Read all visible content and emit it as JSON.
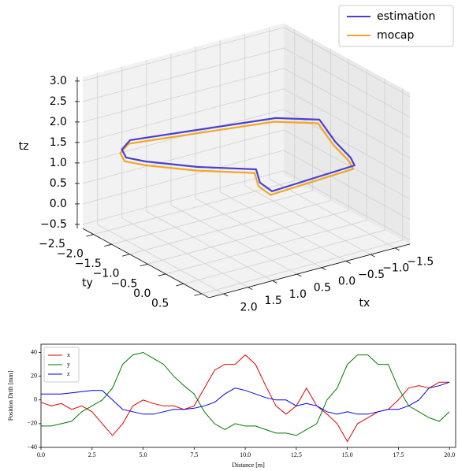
{
  "chart_data": [
    {
      "type": "line3d",
      "xlabel": "tx",
      "ylabel": "ty",
      "zlabel": "tz",
      "xlim": [
        -1.8,
        2.3
      ],
      "ylim": [
        -2.8,
        0.7
      ],
      "zlim": [
        -0.6,
        3.1
      ],
      "xticks": [
        {
          "value": -1.5,
          "label": "−1.5"
        },
        {
          "value": -1,
          "label": "−1.0"
        },
        {
          "value": -0.5,
          "label": "−0.5"
        },
        {
          "value": 0,
          "label": "0.0"
        },
        0.5,
        {
          "value": 1,
          "label": "1.0"
        },
        1.5,
        {
          "value": 2,
          "label": "2.0"
        }
      ],
      "yticks": [
        {
          "value": -2.5,
          "label": "−2.5"
        },
        {
          "value": -2,
          "label": "−2.0"
        },
        {
          "value": -1.5,
          "label": "−1.5"
        },
        {
          "value": -1,
          "label": "−1.0"
        },
        {
          "value": -0.5,
          "label": "−0.5"
        },
        {
          "value": 0,
          "label": "0.0"
        },
        0.5
      ],
      "zticks": [
        {
          "value": -0.5,
          "label": "−0.5"
        },
        {
          "value": 0,
          "label": "0.0"
        },
        0.5,
        {
          "value": 1,
          "label": "1.0"
        },
        1.5,
        {
          "value": 2,
          "label": "2.0"
        },
        2.5,
        {
          "value": 3,
          "label": "3.0"
        }
      ],
      "grid": true,
      "legend": "upper right",
      "series": [
        {
          "name": "estimation",
          "color": "#4a3fd0",
          "tx": [
            0.41,
            0.36,
            0.08,
            0.83,
            1.4,
            1.57,
            1.43,
            1.59,
            0.42,
            -0.96,
            -1.52,
            -1.49,
            -1.51,
            -1.37
          ],
          "ty": [
            -0.12,
            -0.52,
            -1.01,
            -1.63,
            -2.28,
            -2.59,
            -2.9,
            -2.45,
            -2.19,
            -1.88,
            -1.43,
            -0.95,
            -0.55,
            -0.25
          ],
          "tz": [
            1,
            1,
            1,
            1,
            1,
            1,
            1,
            1.5,
            1.5,
            1.5,
            1.5,
            1.2,
            1,
            1
          ]
        },
        {
          "name": "mocap",
          "color": "#f5a623",
          "tx": [
            0.47,
            0.42,
            0.14,
            0.89,
            1.46,
            1.63,
            1.49,
            1.65,
            0.48,
            -0.9,
            -1.46,
            -1.43,
            -1.45,
            -1.31
          ],
          "ty": [
            -0.08,
            -0.48,
            -0.97,
            -1.59,
            -2.24,
            -2.55,
            -2.86,
            -2.41,
            -2.15,
            -1.84,
            -1.39,
            -0.91,
            -0.51,
            -0.21
          ],
          "tz": [
            0.95,
            0.95,
            0.95,
            0.95,
            0.95,
            0.95,
            0.95,
            1.45,
            1.45,
            1.45,
            1.45,
            1.15,
            0.95,
            0.95
          ]
        }
      ]
    },
    {
      "type": "line",
      "xlabel": "Distance [m]",
      "ylabel": "Position Drift [mm]",
      "xlim": [
        0,
        20.3
      ],
      "ylim": [
        -40,
        47
      ],
      "xticks": [
        {
          "value": 0,
          "label": "0.0"
        },
        2.5,
        {
          "value": 5,
          "label": "5.0"
        },
        7.5,
        {
          "value": 10,
          "label": "10.0"
        },
        12.5,
        {
          "value": 15,
          "label": "15.0"
        },
        17.5,
        {
          "value": 20,
          "label": "20.0"
        }
      ],
      "yticks": [
        {
          "value": -40,
          "label": "−40"
        },
        {
          "value": -20,
          "label": "−20"
        },
        0,
        20,
        40
      ],
      "legend": "upper left",
      "x": [
        0,
        0.5,
        1,
        1.5,
        2,
        2.5,
        3,
        3.5,
        4,
        4.5,
        5,
        5.5,
        6,
        6.5,
        7,
        7.5,
        8,
        8.5,
        9,
        9.5,
        10,
        10.5,
        11,
        11.5,
        12,
        12.5,
        13,
        13.5,
        14,
        14.5,
        15,
        15.5,
        16,
        16.5,
        17,
        17.5,
        18,
        18.5,
        19,
        19.5,
        20
      ],
      "series": [
        {
          "name": "x",
          "color": "#e00000",
          "values": [
            -2,
            -5,
            -3,
            -8,
            -5,
            -10,
            -20,
            -30,
            -20,
            -5,
            0,
            -3,
            -5,
            -5,
            -8,
            -5,
            10,
            25,
            30,
            30,
            38,
            30,
            12,
            -5,
            -12,
            -5,
            10,
            -5,
            -12,
            -20,
            -35,
            -20,
            -15,
            -10,
            -8,
            0,
            10,
            12,
            10,
            15,
            15
          ]
        },
        {
          "name": "y",
          "color": "#007a00",
          "values": [
            -22,
            -22,
            -20,
            -18,
            -10,
            -5,
            0,
            10,
            30,
            38,
            40,
            35,
            30,
            20,
            12,
            5,
            -10,
            -20,
            -25,
            -20,
            -22,
            -22,
            -25,
            -28,
            -28,
            -30,
            -25,
            -20,
            0,
            10,
            30,
            38,
            38,
            30,
            30,
            10,
            -5,
            -10,
            -15,
            -18,
            -10
          ]
        },
        {
          "name": "z",
          "color": "#0000e0",
          "values": [
            5,
            5,
            5,
            6,
            7,
            8,
            8,
            0,
            -8,
            -10,
            -12,
            -12,
            -10,
            -8,
            -8,
            -7,
            -5,
            -2,
            5,
            10,
            8,
            5,
            2,
            0,
            0,
            -5,
            -3,
            -5,
            -10,
            -12,
            -10,
            -12,
            -12,
            -10,
            -8,
            -8,
            -5,
            0,
            10,
            12,
            15
          ]
        }
      ]
    }
  ]
}
